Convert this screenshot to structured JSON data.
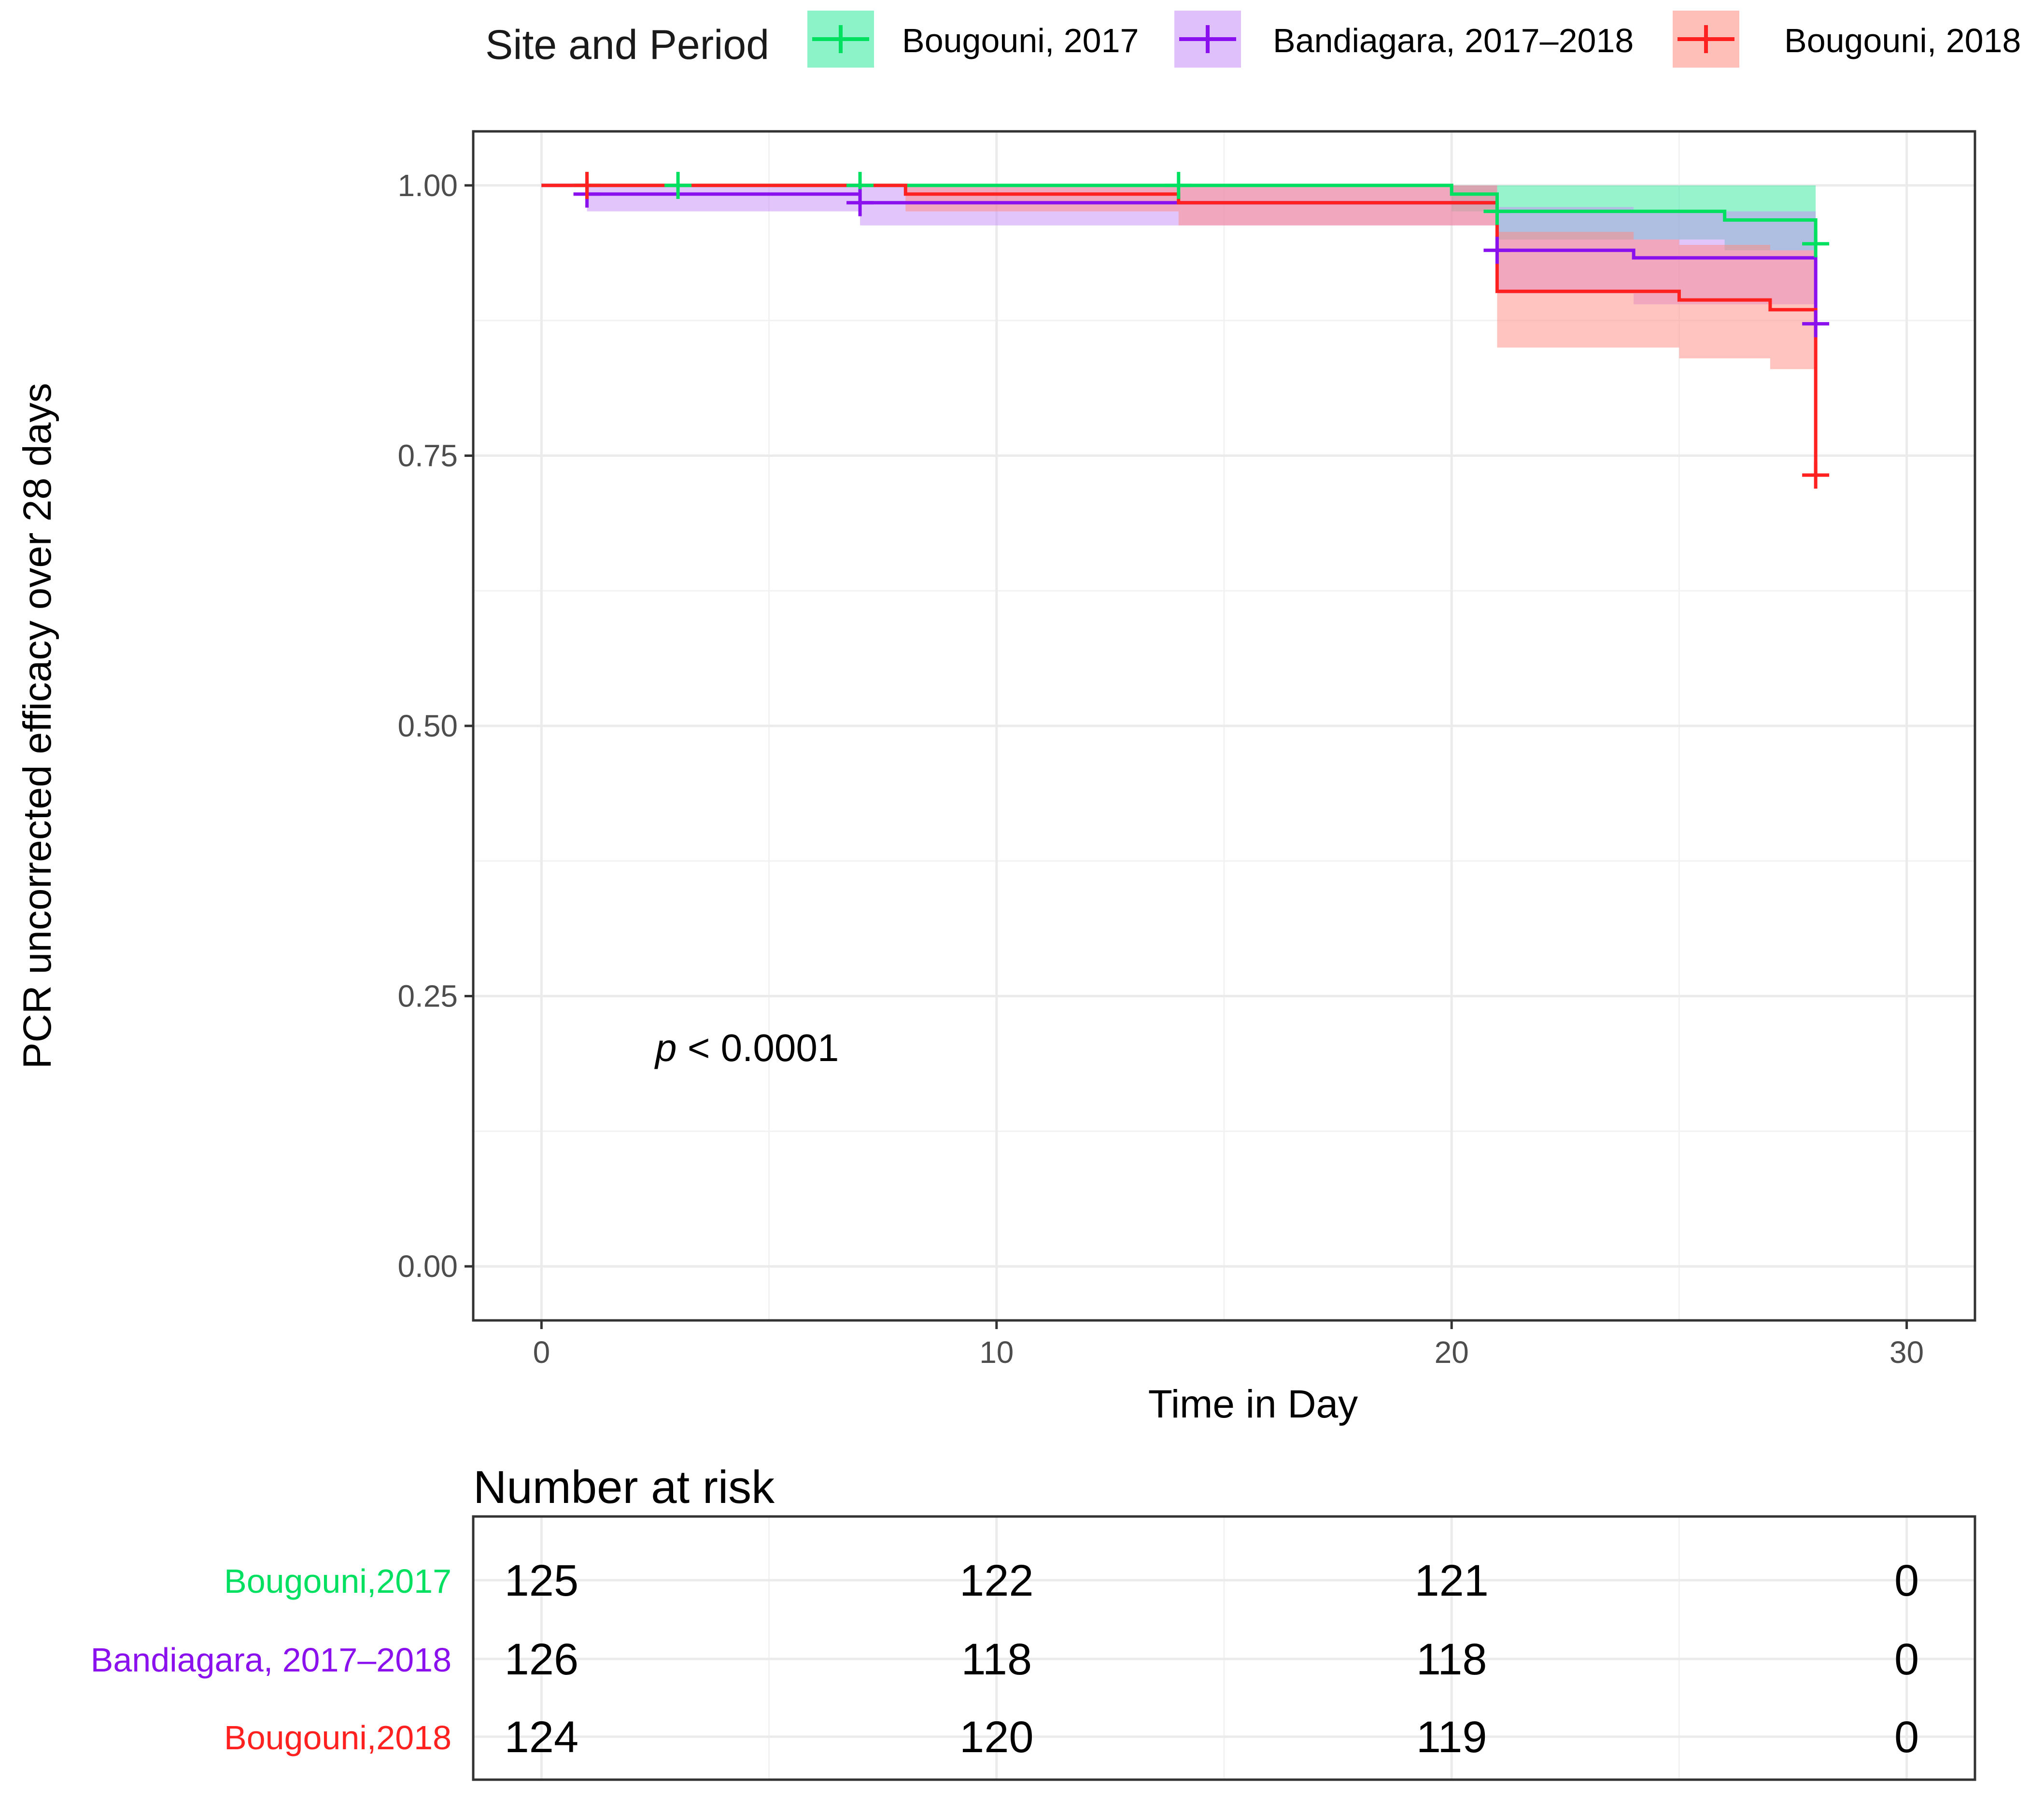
{
  "chart_data": {
    "type": "line",
    "subtype": "kaplan-meier step curves with confidence bands",
    "title": "",
    "xlabel": "Time in Day",
    "ylabel": "PCR uncorrected efficacy over 28 days",
    "xlim": [
      -1.5,
      31.5
    ],
    "ylim": [
      -0.05,
      1.05
    ],
    "x_ticks": [
      0,
      10,
      20,
      30
    ],
    "y_ticks": [
      0.0,
      0.25,
      0.5,
      0.75,
      1.0
    ],
    "y_tick_labels": [
      "0.00",
      "0.25",
      "0.50",
      "0.75",
      "1.00"
    ],
    "grid": true,
    "legend_title": "Site and Period",
    "legend_position": "top",
    "annotation": {
      "italic": "p",
      "rest": " < 0.0001",
      "x": 2.5,
      "y": 0.19
    },
    "series": [
      {
        "name": "Bougouni, 2017",
        "color": "#00e060",
        "fill": "#2ee89a",
        "steps": [
          [
            0,
            1.0
          ],
          [
            20,
            0.992
          ],
          [
            21,
            0.976
          ],
          [
            26,
            0.968
          ],
          [
            28,
            0.946
          ]
        ],
        "end": 28,
        "band": [
          [
            0,
            1.0,
            1.0
          ],
          [
            20,
            0.976,
            1.0
          ],
          [
            21,
            0.95,
            1.0
          ],
          [
            26,
            0.94,
            1.0
          ],
          [
            28,
            0.93,
            0.99
          ]
        ],
        "censors": [
          [
            1,
            1.0
          ],
          [
            3,
            1.0
          ],
          [
            7,
            1.0
          ],
          [
            14,
            1.0
          ],
          [
            21,
            0.976
          ],
          [
            28,
            0.946
          ]
        ]
      },
      {
        "name": "Bandiagara, 2017–2018",
        "color": "#8a10ee",
        "fill": "#c58cf5",
        "steps": [
          [
            0,
            1.0
          ],
          [
            1,
            0.992
          ],
          [
            7,
            0.984
          ],
          [
            21,
            0.94
          ],
          [
            24,
            0.933
          ],
          [
            28,
            0.872
          ]
        ],
        "end": 28,
        "band": [
          [
            0,
            1.0,
            1.0
          ],
          [
            1,
            0.976,
            1.0
          ],
          [
            7,
            0.963,
            1.0
          ],
          [
            21,
            0.9,
            0.98
          ],
          [
            24,
            0.89,
            0.976
          ],
          [
            28,
            0.85,
            0.95
          ]
        ],
        "censors": [
          [
            1,
            0.992
          ],
          [
            7,
            0.984
          ],
          [
            21,
            0.94
          ],
          [
            28,
            0.872
          ]
        ]
      },
      {
        "name": "Bougouni, 2018",
        "color": "#ff2020",
        "fill": "#ff8a80",
        "steps": [
          [
            0,
            1.0
          ],
          [
            8,
            0.992
          ],
          [
            14,
            0.984
          ],
          [
            21,
            0.902
          ],
          [
            25,
            0.894
          ],
          [
            27,
            0.885
          ],
          [
            28,
            0.732
          ]
        ],
        "end": 28,
        "band": [
          [
            0,
            1.0,
            1.0
          ],
          [
            8,
            0.976,
            1.0
          ],
          [
            14,
            0.963,
            1.0
          ],
          [
            21,
            0.85,
            0.957
          ],
          [
            24,
            0.85,
            0.95
          ],
          [
            25,
            0.84,
            0.945
          ],
          [
            27,
            0.83,
            0.94
          ],
          [
            28,
            0.83,
            0.94
          ]
        ],
        "censors": [
          [
            1,
            1.0
          ],
          [
            28,
            0.732
          ]
        ]
      }
    ],
    "risk_table": {
      "title": "Number at risk",
      "times": [
        0,
        10,
        20,
        30
      ],
      "rows": [
        {
          "label": "Bougouni,2017",
          "color": "#00e060",
          "values": [
            "125",
            "122",
            "121",
            "0"
          ]
        },
        {
          "label": "Bandiagara, 2017–2018",
          "color": "#8a10ee",
          "values": [
            "126",
            "118",
            "118",
            "0"
          ]
        },
        {
          "label": "Bougouni,2018",
          "color": "#ff2020",
          "values": [
            "124",
            "120",
            "119",
            "0"
          ]
        }
      ]
    }
  }
}
